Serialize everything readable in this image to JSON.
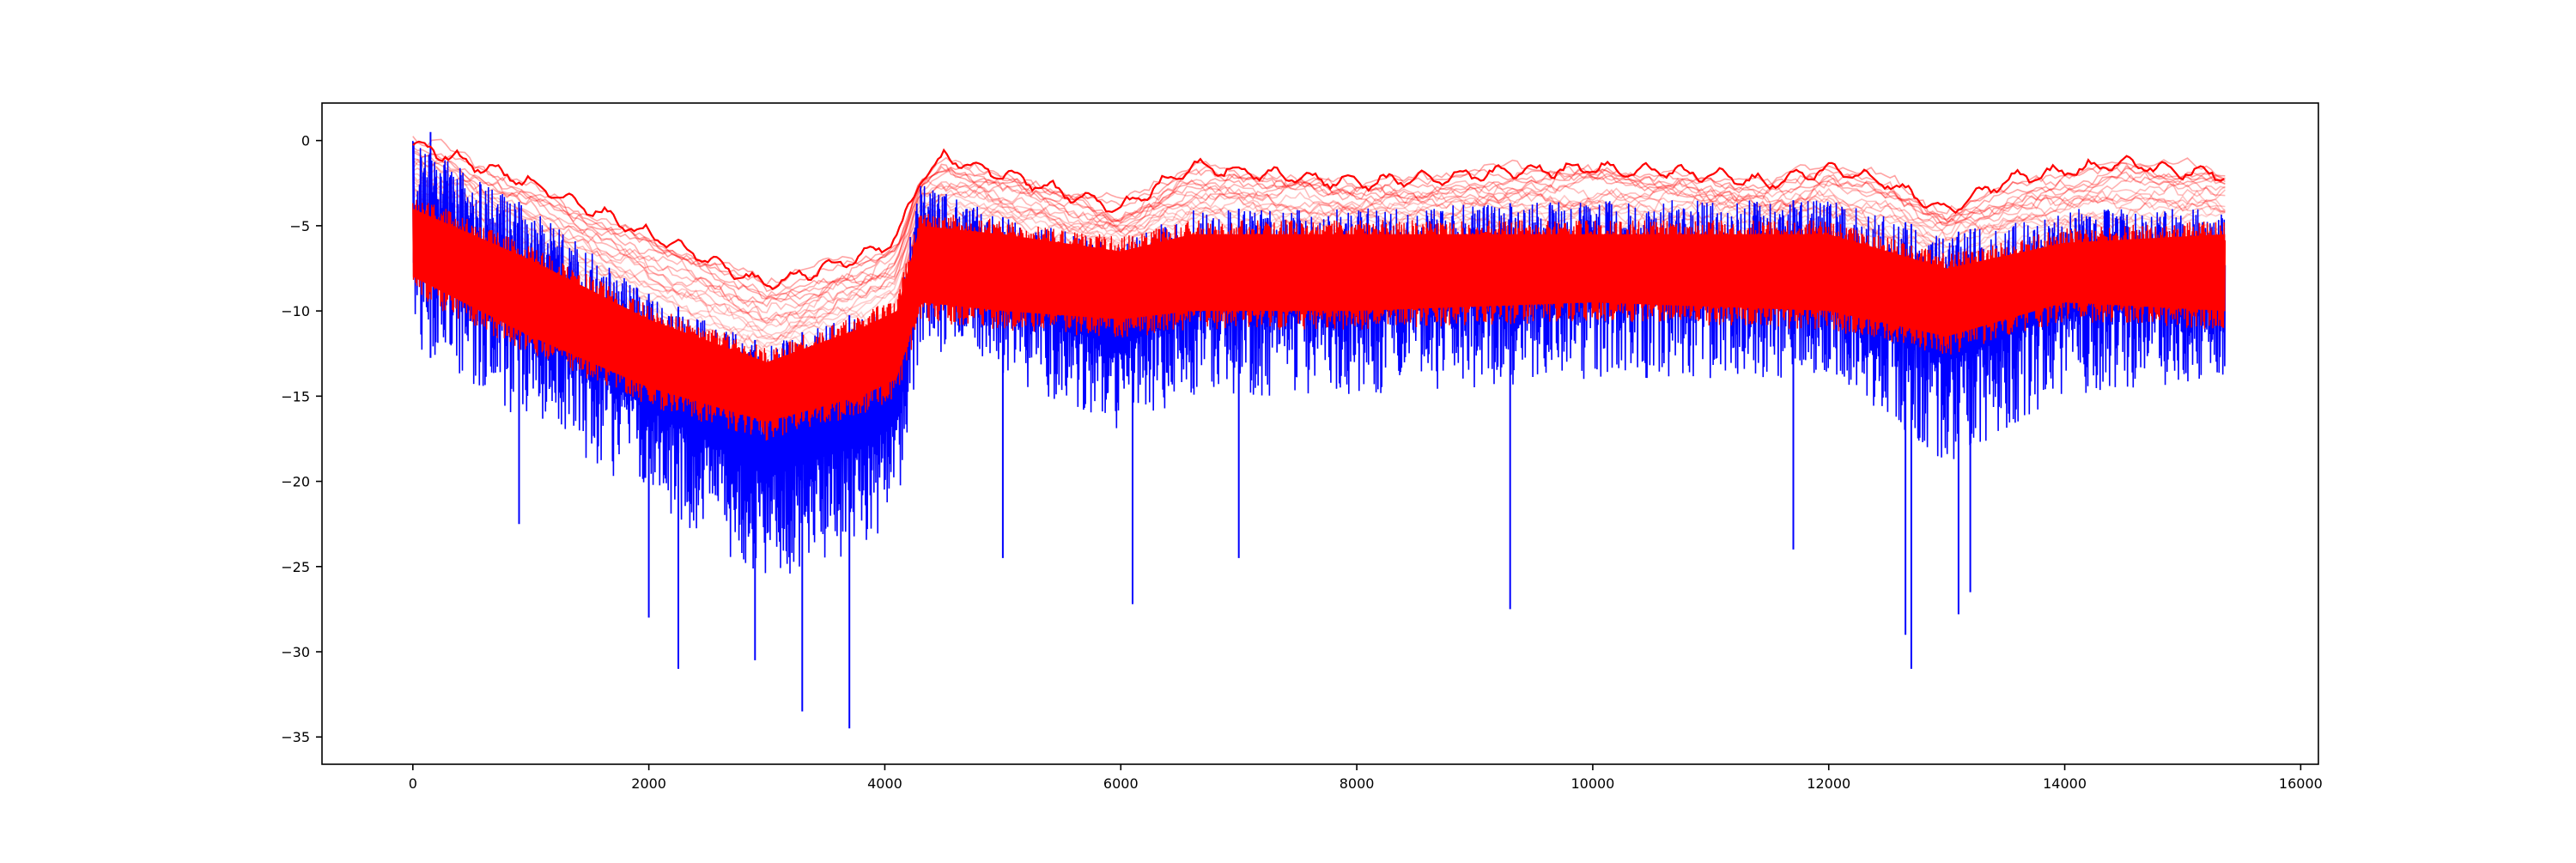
{
  "chart_data": {
    "type": "line",
    "title": "",
    "xlabel": "",
    "ylabel": "",
    "xlim": [
      -770,
      16150
    ],
    "ylim": [
      -36.6,
      2.2
    ],
    "xticks": [
      0,
      2000,
      4000,
      6000,
      8000,
      10000,
      12000,
      14000,
      16000
    ],
    "yticks": [
      0,
      -5,
      -10,
      -15,
      -20,
      -25,
      -30,
      -35
    ],
    "x_range": [
      0,
      15360
    ],
    "legend": "none",
    "grid": false,
    "colors": {
      "red_series": "#ff0000",
      "blue_series": "#0000ff",
      "axes": "#000000"
    },
    "series": [
      {
        "color": "#ff0000",
        "style": "many overlaid lines; upper envelope shown, lighter traces below",
        "upper_envelope": {
          "x": [
            0,
            1000,
            2000,
            3000,
            3800,
            4100,
            4300,
            4500,
            5000,
            5500,
            6000,
            6600,
            7000,
            8000,
            9000,
            10000,
            11000,
            11500,
            12000,
            12500,
            13000,
            13500,
            14000,
            14500,
            15000,
            15360
          ],
          "y": [
            -0.2,
            -2.5,
            -5.5,
            -8.5,
            -6.8,
            -5.8,
            -2.3,
            -1.0,
            -2.0,
            -3.0,
            -4.0,
            -1.5,
            -1.8,
            -2.5,
            -2.0,
            -1.6,
            -2.0,
            -2.5,
            -1.6,
            -2.5,
            -4.2,
            -2.3,
            -1.8,
            -1.3,
            -1.8,
            -2.0
          ]
        },
        "dense_band": {
          "x": [
            0,
            1000,
            2000,
            3000,
            3800,
            4100,
            4300,
            5000,
            6000,
            6600,
            8000,
            10000,
            12000,
            13000,
            14000,
            15360
          ],
          "upper": [
            -4.0,
            -7.0,
            -10.5,
            -13.0,
            -11.0,
            -10.0,
            -5.0,
            -5.5,
            -6.5,
            -5.5,
            -5.5,
            -5.5,
            -5.5,
            -7.5,
            -6.0,
            -5.5
          ],
          "lower": [
            -8.0,
            -11.5,
            -14.5,
            -16.5,
            -15.0,
            -14.0,
            -9.5,
            -10.0,
            -10.5,
            -10.0,
            -10.0,
            -9.5,
            -10.0,
            -11.5,
            -9.5,
            -10.0
          ]
        }
      },
      {
        "color": "#0000ff",
        "style": "noisy line with deep downward spikes",
        "envelope": {
          "x": [
            0,
            1000,
            2000,
            3000,
            3800,
            4100,
            4300,
            5000,
            6000,
            6600,
            8000,
            10000,
            12000,
            13000,
            14000,
            15360
          ],
          "upper": [
            0.0,
            -4.0,
            -9.0,
            -12.0,
            -10.0,
            -10.0,
            -2.5,
            -4.5,
            -6.0,
            -4.0,
            -4.0,
            -3.5,
            -3.5,
            -5.5,
            -4.0,
            -4.0
          ],
          "lower": [
            -12.0,
            -17.0,
            -21.0,
            -26.0,
            -24.0,
            -22.0,
            -12.0,
            -14.0,
            -17.0,
            -15.0,
            -15.0,
            -14.0,
            -14.0,
            -19.0,
            -15.0,
            -14.0
          ]
        },
        "spikes": [
          {
            "x": 150,
            "y": 0.5
          },
          {
            "x": 900,
            "y": -22.5
          },
          {
            "x": 2000,
            "y": -28.0
          },
          {
            "x": 2250,
            "y": -31.0
          },
          {
            "x": 2900,
            "y": -30.5
          },
          {
            "x": 3300,
            "y": -33.5
          },
          {
            "x": 3700,
            "y": -34.5
          },
          {
            "x": 5000,
            "y": -24.5
          },
          {
            "x": 6100,
            "y": -27.2
          },
          {
            "x": 7000,
            "y": -24.5
          },
          {
            "x": 9300,
            "y": -27.5
          },
          {
            "x": 11700,
            "y": -24.0
          },
          {
            "x": 12650,
            "y": -29.0
          },
          {
            "x": 12700,
            "y": -31.0
          },
          {
            "x": 13100,
            "y": -27.8
          },
          {
            "x": 13200,
            "y": -26.5
          }
        ]
      }
    ]
  }
}
